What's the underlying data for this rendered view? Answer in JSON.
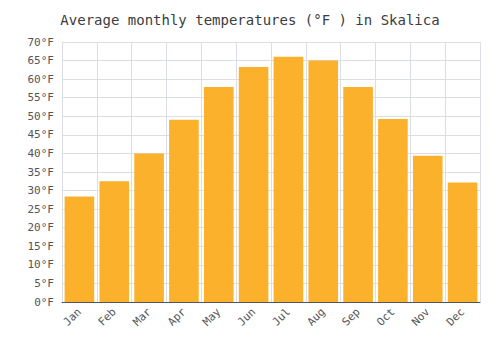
{
  "chart_data": {
    "type": "bar",
    "title": "Average monthly temperatures (°F ) in Skalica",
    "categories": [
      "Jan",
      "Feb",
      "Mar",
      "Apr",
      "May",
      "Jun",
      "Jul",
      "Aug",
      "Sep",
      "Oct",
      "Nov",
      "Dec"
    ],
    "values": [
      28.4,
      32.5,
      40.0,
      49.1,
      57.9,
      63.3,
      66.0,
      65.0,
      57.9,
      49.3,
      39.4,
      32.2
    ],
    "color": "#FBB12B",
    "ylim": [
      0,
      70
    ],
    "yticks": [
      {
        "value": 0,
        "label": "0°F"
      },
      {
        "value": 5,
        "label": "5°F"
      },
      {
        "value": 10,
        "label": "10°F"
      },
      {
        "value": 15,
        "label": "15°F"
      },
      {
        "value": 20,
        "label": "20°F"
      },
      {
        "value": 25,
        "label": "25°F"
      },
      {
        "value": 30,
        "label": "30°F"
      },
      {
        "value": 35,
        "label": "35°F"
      },
      {
        "value": 40,
        "label": "40°F"
      },
      {
        "value": 45,
        "label": "45°F"
      },
      {
        "value": 50,
        "label": "50°F"
      },
      {
        "value": 55,
        "label": "55°F"
      },
      {
        "value": 60,
        "label": "60°F"
      },
      {
        "value": 65,
        "label": "65°F"
      },
      {
        "value": 70,
        "label": "70°F"
      }
    ],
    "grid": true
  }
}
